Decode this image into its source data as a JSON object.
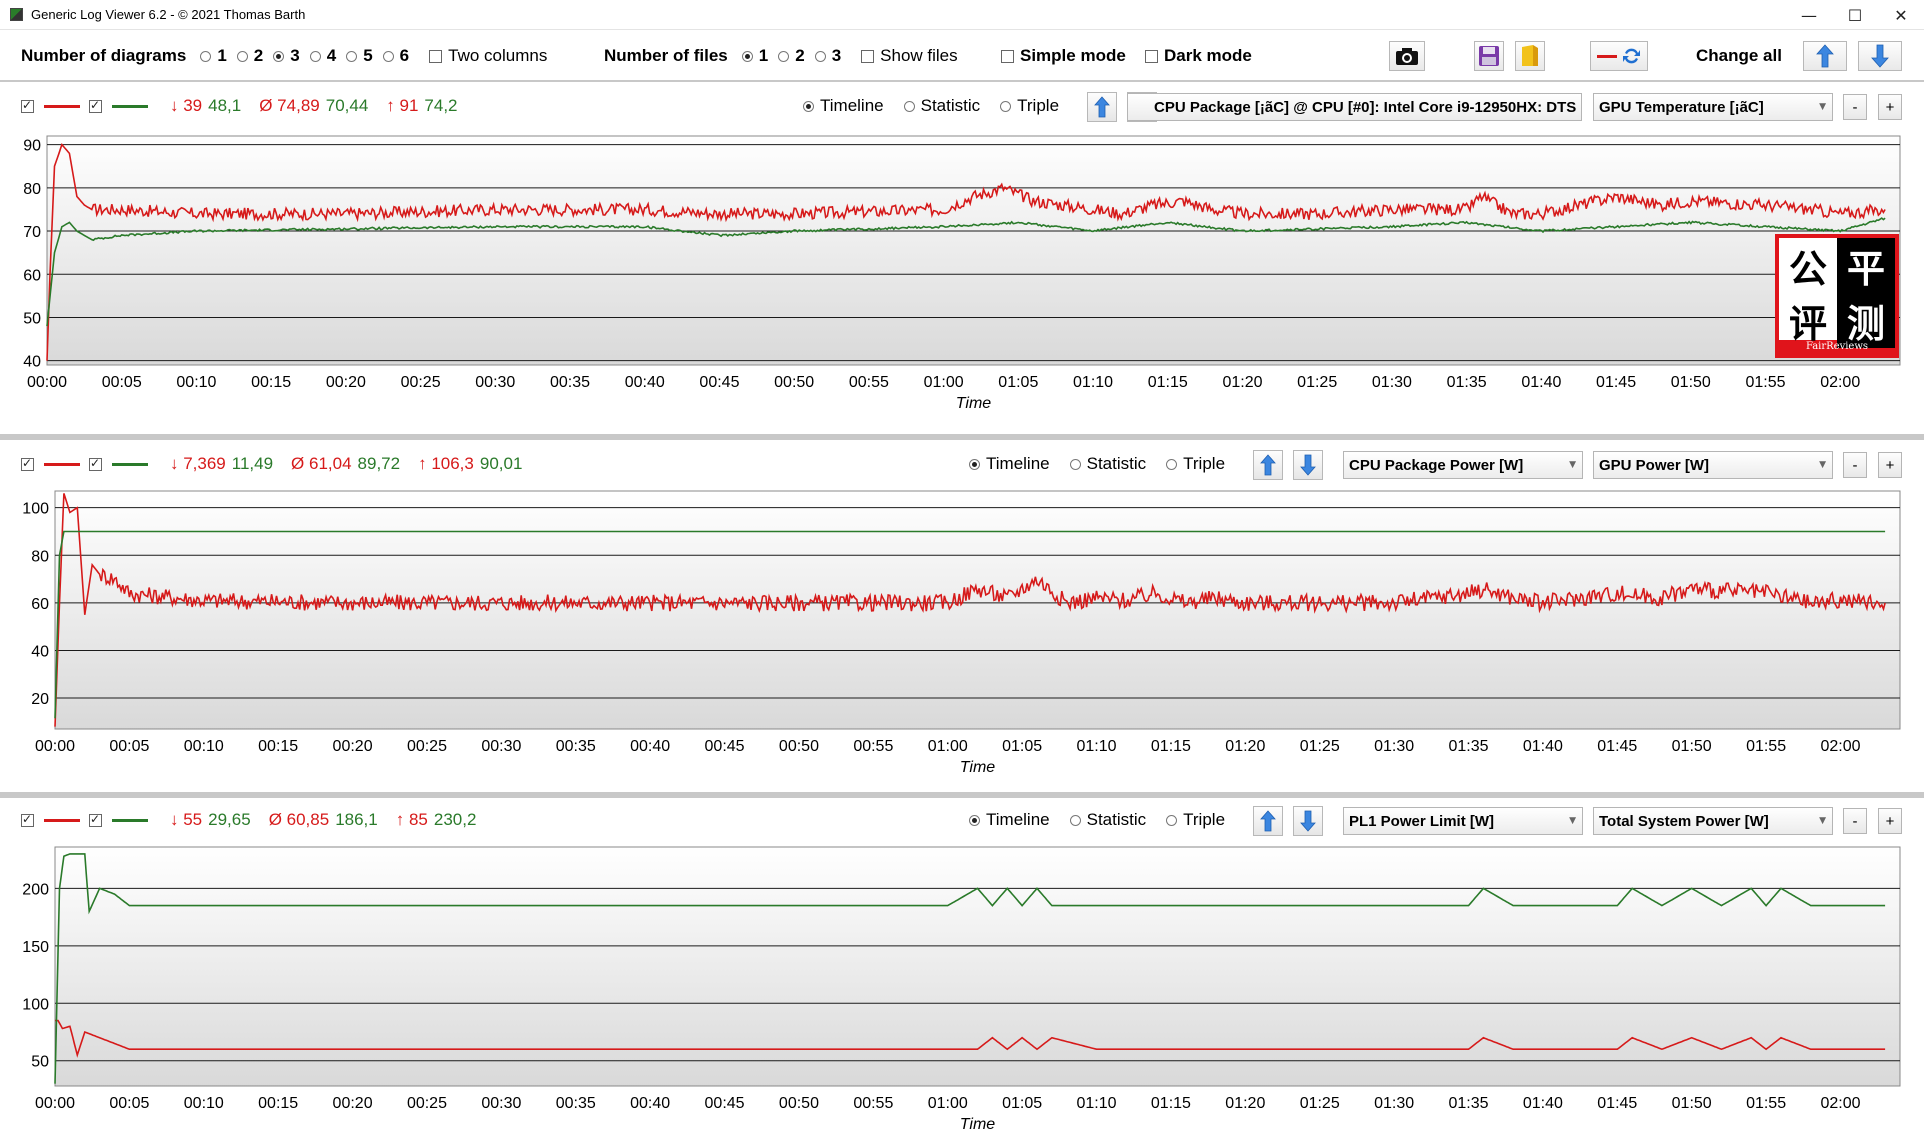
{
  "window": {
    "title": "Generic Log Viewer 6.2 - © 2021 Thomas Barth",
    "controls": [
      "—",
      "☐",
      "✕"
    ]
  },
  "toolbar": {
    "diagrams_label": "Number of diagrams",
    "diagram_options": [
      "1",
      "2",
      "3",
      "4",
      "5",
      "6"
    ],
    "diagram_selected": "3",
    "two_columns_label": "Two columns",
    "files_label": "Number of files",
    "file_options": [
      "1",
      "2",
      "3"
    ],
    "file_selected": "1",
    "show_files_label": "Show files",
    "simple_mode_label": "Simple mode",
    "dark_mode_label": "Dark mode",
    "change_all_label": "Change all"
  },
  "colors": {
    "red": "#d61a1a",
    "green": "#2a7a2a",
    "grid": "#1a1a1a"
  },
  "time_ticks": [
    "00:00",
    "00:05",
    "00:10",
    "00:15",
    "00:20",
    "00:25",
    "00:30",
    "00:35",
    "00:40",
    "00:45",
    "00:50",
    "00:55",
    "01:00",
    "01:05",
    "01:10",
    "01:15",
    "01:20",
    "01:25",
    "01:30",
    "01:35",
    "01:40",
    "01:45",
    "01:50",
    "01:55",
    "02:00"
  ],
  "xlabel": "Time",
  "panels": [
    {
      "stat_min": "↓ 39 48,1",
      "stat_min_red": "↓ 39",
      "stat_min_green": "48,1",
      "stat_avg_red": "Ø 74,89",
      "stat_avg_green": "70,44",
      "stat_max_red": "↑ 91",
      "stat_max_green": "74,2",
      "mode_timeline": "Timeline",
      "mode_statistic": "Statistic",
      "mode_triple": "Triple",
      "select_left": "CPU Package [¡ãC] @ CPU [#0]: Intel Core i9-12950HX: DTS",
      "select_right": "GPU Temperature [¡ãC]",
      "minus": "-",
      "plus": "+"
    },
    {
      "stat_min_red": "↓ 7,369",
      "stat_min_green": "11,49",
      "stat_avg_red": "Ø 61,04",
      "stat_avg_green": "89,72",
      "stat_max_red": "↑ 106,3",
      "stat_max_green": "90,01",
      "mode_timeline": "Timeline",
      "mode_statistic": "Statistic",
      "mode_triple": "Triple",
      "select_left": "CPU Package Power [W]",
      "select_right": "GPU Power [W]",
      "minus": "-",
      "plus": "+"
    },
    {
      "stat_min_red": "↓ 55",
      "stat_min_green": "29,65",
      "stat_avg_red": "Ø 60,85",
      "stat_avg_green": "186,1",
      "stat_max_red": "↑ 85",
      "stat_max_green": "230,2",
      "mode_timeline": "Timeline",
      "mode_statistic": "Statistic",
      "mode_triple": "Triple",
      "select_left": "PL1 Power Limit [W]",
      "select_right": "Total System Power [W]",
      "minus": "-",
      "plus": "+"
    }
  ],
  "logo": {
    "chars": [
      "公",
      "平",
      "评",
      "测"
    ],
    "sub": "FairReviews"
  },
  "chart_data": [
    {
      "type": "line",
      "xlabel": "Time",
      "xlim": [
        "00:00",
        "02:04"
      ],
      "ylim": [
        39,
        92
      ],
      "yticks": [
        40,
        50,
        60,
        70,
        80,
        90
      ],
      "grid": true,
      "series": [
        {
          "name": "CPU Package [¡ãC] @ CPU [#0]: Intel Core i9-12950HX: DTS",
          "color": "#d61a1a",
          "x_min": [
            0,
            0.2,
            0.5,
            1,
            1.5,
            2,
            2.5,
            3,
            5,
            10,
            20,
            30,
            40,
            45,
            50,
            60,
            62,
            64,
            66,
            68,
            72,
            74,
            76,
            78,
            80,
            85,
            90,
            95,
            96,
            98,
            100,
            105,
            108,
            110,
            115,
            118,
            120,
            123
          ],
          "values": [
            40,
            60,
            85,
            90,
            88,
            78,
            76,
            75,
            75,
            74,
            74,
            75,
            75,
            74,
            74,
            75,
            78,
            80,
            77,
            76,
            74,
            76,
            77,
            75,
            74,
            74,
            75,
            75,
            78,
            74,
            74,
            78,
            76,
            77,
            76,
            75,
            74,
            75
          ]
        },
        {
          "name": "GPU Temperature [¡ãC]",
          "color": "#2a7a2a",
          "x_min": [
            0,
            0.5,
            1,
            1.5,
            2,
            3,
            5,
            10,
            20,
            30,
            40,
            45,
            50,
            60,
            65,
            70,
            75,
            80,
            85,
            90,
            95,
            100,
            105,
            110,
            115,
            120,
            123
          ],
          "values": [
            48,
            65,
            71,
            72,
            70,
            68,
            69,
            70,
            70.5,
            71,
            71,
            69,
            70,
            71,
            72,
            70,
            72,
            70,
            70.5,
            71,
            72,
            70,
            71,
            72,
            71,
            70,
            73
          ]
        }
      ]
    },
    {
      "type": "line",
      "xlabel": "Time",
      "xlim": [
        "00:00",
        "02:04"
      ],
      "ylim": [
        7,
        107
      ],
      "yticks": [
        20,
        40,
        60,
        80,
        100
      ],
      "grid": true,
      "series": [
        {
          "name": "CPU Package Power [W]",
          "color": "#d61a1a",
          "x_min": [
            0,
            0.3,
            0.6,
            1,
            1.5,
            2,
            2.5,
            3,
            4,
            5,
            10,
            20,
            30,
            40,
            50,
            60,
            62,
            64,
            66,
            68,
            70,
            72,
            74,
            76,
            78,
            80,
            85,
            90,
            95,
            96,
            98,
            100,
            105,
            108,
            110,
            115,
            118,
            120,
            123
          ],
          "values": [
            8,
            60,
            106,
            98,
            100,
            55,
            76,
            72,
            70,
            64,
            61,
            60,
            60,
            60,
            60,
            60,
            66,
            62,
            70,
            60,
            62,
            61,
            64,
            60,
            62,
            60,
            60,
            60,
            64,
            66,
            62,
            60,
            64,
            62,
            66,
            64,
            60,
            61,
            60
          ]
        },
        {
          "name": "GPU Power [W]",
          "color": "#2a7a2a",
          "x_min": [
            0,
            0.3,
            0.6,
            1,
            123
          ],
          "values": [
            11.5,
            80,
            90,
            90,
            90
          ]
        }
      ]
    },
    {
      "type": "line",
      "xlabel": "Time",
      "xlim": [
        "00:00",
        "02:04"
      ],
      "ylim": [
        28,
        236
      ],
      "yticks": [
        50,
        100,
        150,
        200
      ],
      "grid": true,
      "series": [
        {
          "name": "PL1 Power Limit [W]",
          "color": "#d61a1a",
          "x_min": [
            0,
            0.2,
            0.5,
            1,
            1.5,
            2,
            3,
            5,
            10,
            20,
            30,
            40,
            50,
            60,
            62,
            63,
            64,
            65,
            66,
            67,
            70,
            75,
            78,
            80,
            85,
            90,
            95,
            96,
            98,
            100,
            105,
            106,
            108,
            110,
            112,
            114,
            115,
            116,
            118,
            120,
            123
          ],
          "values": [
            85,
            85,
            78,
            80,
            55,
            75,
            70,
            60,
            60,
            60,
            60,
            60,
            60,
            60,
            60,
            70,
            60,
            70,
            60,
            70,
            60,
            60,
            60,
            60,
            60,
            60,
            60,
            70,
            60,
            60,
            60,
            70,
            60,
            70,
            60,
            70,
            60,
            70,
            60,
            60,
            60
          ]
        },
        {
          "name": "Total System Power [W]",
          "color": "#2a7a2a",
          "x_min": [
            0,
            0.3,
            0.6,
            1,
            2,
            2.3,
            3,
            4,
            5,
            10,
            20,
            30,
            40,
            50,
            60,
            62,
            63,
            64,
            65,
            66,
            67,
            70,
            75,
            78,
            80,
            85,
            90,
            95,
            96,
            98,
            100,
            105,
            106,
            108,
            110,
            112,
            114,
            115,
            116,
            118,
            120,
            123
          ],
          "values": [
            30,
            200,
            228,
            230,
            230,
            180,
            200,
            195,
            185,
            185,
            185,
            185,
            185,
            185,
            185,
            200,
            185,
            200,
            185,
            200,
            185,
            185,
            185,
            185,
            185,
            185,
            185,
            185,
            200,
            185,
            185,
            185,
            200,
            185,
            200,
            185,
            200,
            185,
            200,
            185,
            185,
            185
          ]
        }
      ]
    }
  ]
}
